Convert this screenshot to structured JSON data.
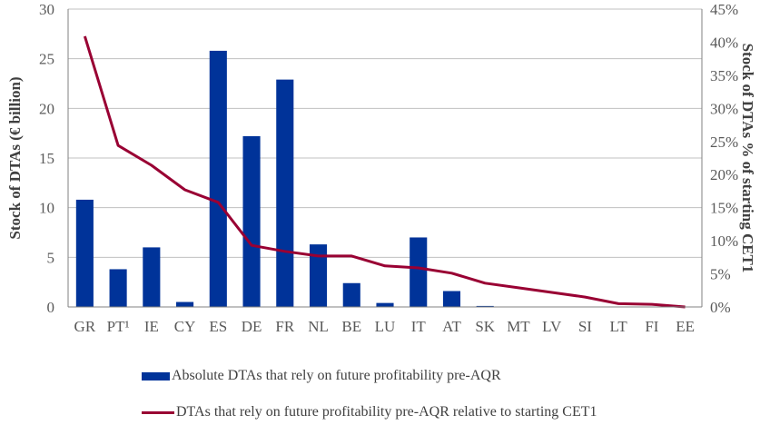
{
  "chart_data": {
    "type": "bar",
    "title": "",
    "categories": [
      "GR",
      "PT¹",
      "IE",
      "CY",
      "ES",
      "DE",
      "FR",
      "NL",
      "BE",
      "LU",
      "IT",
      "AT",
      "SK",
      "MT",
      "LV",
      "SI",
      "LT",
      "FI",
      "EE"
    ],
    "series": [
      {
        "name": "Absolute DTAs that rely on future profitability pre-AQR",
        "type": "bar",
        "axis": "left",
        "color": "#003399",
        "values": [
          10.8,
          3.8,
          6.0,
          0.5,
          25.8,
          17.2,
          22.9,
          6.3,
          2.4,
          0.4,
          7.0,
          1.6,
          0.1,
          0,
          0,
          0,
          0,
          0,
          0
        ]
      },
      {
        "name": "DTAs that rely on future profitability pre-AQR relative to starting CET1",
        "type": "line",
        "axis": "right",
        "color": "#990033",
        "values": [
          40.9,
          24.4,
          21.4,
          17.7,
          15.8,
          9.3,
          8.4,
          7.7,
          7.7,
          6.2,
          5.9,
          5.1,
          3.6,
          2.9,
          2.2,
          1.5,
          0.5,
          0.4,
          0.0
        ]
      }
    ],
    "ylabel": "Stock of DTAs (€ billion)",
    "ylabel_right": "Stock of DTAs % of starting CET1",
    "ylim": [
      0,
      30
    ],
    "ylim_right": [
      0,
      45
    ],
    "yticks": [
      "0",
      "5",
      "10",
      "15",
      "20",
      "25",
      "30"
    ],
    "yticks_right": [
      "0%",
      "5%",
      "10%",
      "15%",
      "20%",
      "25%",
      "30%",
      "35%",
      "40%",
      "45%"
    ],
    "grid": true,
    "legend_position": "bottom"
  }
}
